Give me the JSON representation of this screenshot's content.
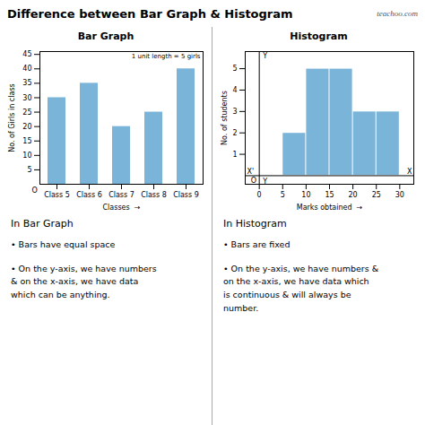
{
  "title": "Difference between Bar Graph & Histogram",
  "annotation": "teachoo.com",
  "chart_data": [
    {
      "type": "bar",
      "title": "Bar Graph",
      "categories": [
        "Class 5",
        "Class 6",
        "Class 7",
        "Class 8",
        "Class 9"
      ],
      "values": [
        30,
        35,
        20,
        25,
        40
      ],
      "color": "#7ab4d8",
      "xlabel": "Classes  →",
      "ylabel": "No. of Girls in class",
      "ylim": [
        0,
        46
      ],
      "yticks": [
        5,
        10,
        15,
        20,
        25,
        30,
        35,
        40,
        45
      ],
      "grid": false,
      "annotation": "1 unit length = 5 girls",
      "origin_label": "O",
      "description": {
        "heading": "In Bar Graph",
        "bullets": [
          "• Bars have equal space",
          "• On the y-axis, we have numbers\n& on the x-axis, we have data\nwhich can be anything."
        ]
      }
    },
    {
      "type": "histogram",
      "title": "Histogram",
      "bins": [
        0,
        5,
        10,
        15,
        20,
        25,
        30
      ],
      "values": [
        0,
        2,
        5,
        5,
        3,
        3
      ],
      "color": "#7ab4d8",
      "xlabel": "Marks obtained  →",
      "ylabel": "No. of students",
      "xlim": [
        -3,
        33
      ],
      "xticks": [
        0,
        5,
        10,
        15,
        20,
        25,
        30
      ],
      "ylim": [
        -0.4,
        5.8
      ],
      "yticks": [
        1,
        2,
        3,
        4,
        5
      ],
      "grid": false,
      "origin_label": "O",
      "axis_letters": {
        "x_left": "X'",
        "x_right": "X",
        "y_top": "Y",
        "y_bottom": "Y"
      },
      "description": {
        "heading": "In Histogram",
        "bullets": [
          "• Bars are fixed",
          "• On the y-axis, we have numbers &\non the x-axis, we have data which\nis continuous & will always be\nnumber."
        ]
      }
    }
  ]
}
